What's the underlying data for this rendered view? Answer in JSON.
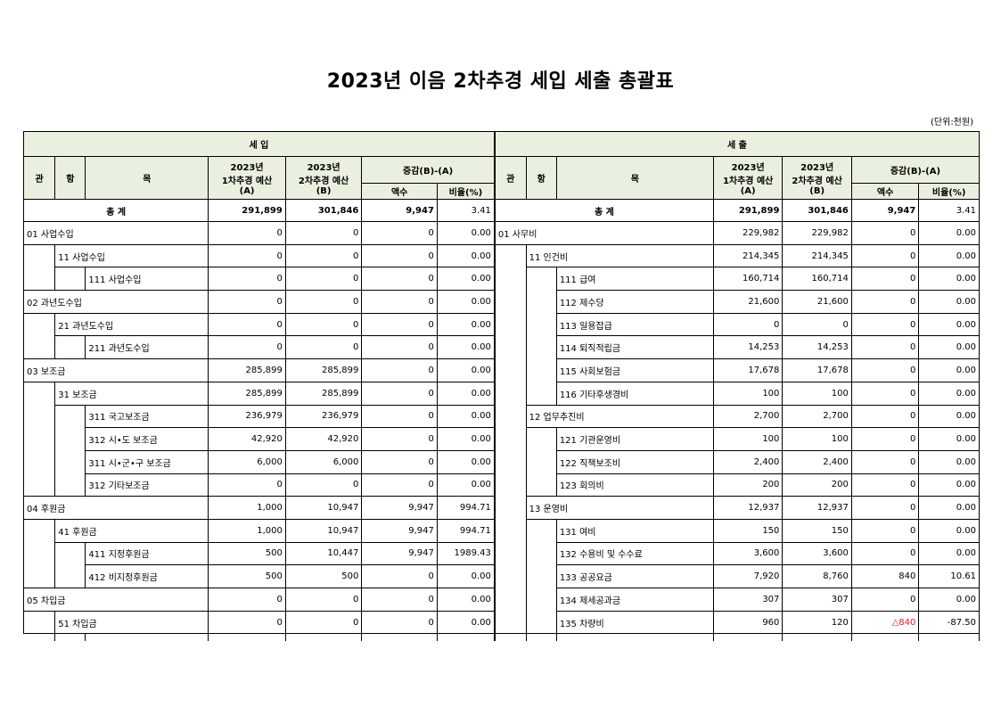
{
  "title": "2023년 이음 2차추경 세입 세출 총괄표",
  "unit": "(단위:천원)",
  "headers": {
    "revenue": "세          입",
    "expense": "세          출",
    "gwan": "관",
    "hang": "항",
    "mok": "목",
    "budget1_line1": "2023년",
    "budget1_line2": "1차추경 예산",
    "budget1_line3": "(A)",
    "budget2_line1": "2023년",
    "budget2_line2": "2차추경 예산",
    "budget2_line3": "(B)",
    "diff": "증감(B)-(A)",
    "amount": "액수",
    "ratio": "비율(%)"
  },
  "totals": {
    "label": "총          계",
    "revenue": {
      "a": "291,899",
      "b": "301,846",
      "diff": "9,947",
      "ratio": "3.41"
    },
    "expense": {
      "a": "291,899",
      "b": "301,846",
      "diff": "9,947",
      "ratio": "3.41"
    }
  },
  "rows": [
    {
      "left": {
        "level": 1,
        "name": "01 사업수입",
        "a": "0",
        "b": "0",
        "diff": "0",
        "ratio": "0.00"
      },
      "right": {
        "level": 1,
        "name": "01 사무비",
        "a": "229,982",
        "b": "229,982",
        "diff": "0",
        "ratio": "0.00"
      }
    },
    {
      "left": {
        "level": 2,
        "name": "11 사업수입",
        "a": "0",
        "b": "0",
        "diff": "0",
        "ratio": "0.00"
      },
      "right": {
        "level": 2,
        "name": "11 인건비",
        "a": "214,345",
        "b": "214,345",
        "diff": "0",
        "ratio": "0.00"
      }
    },
    {
      "left": {
        "level": 3,
        "name": "111 사업수입",
        "a": "0",
        "b": "0",
        "diff": "0",
        "ratio": "0.00"
      },
      "right": {
        "level": 3,
        "name": "111 급여",
        "a": "160,714",
        "b": "160,714",
        "diff": "0",
        "ratio": "0.00"
      }
    },
    {
      "left": {
        "level": 1,
        "name": "02 과년도수입",
        "a": "0",
        "b": "0",
        "diff": "0",
        "ratio": "0.00"
      },
      "right": {
        "level": 3,
        "name": "112 제수당",
        "a": "21,600",
        "b": "21,600",
        "diff": "0",
        "ratio": "0.00"
      }
    },
    {
      "left": {
        "level": 2,
        "name": "21 과년도수입",
        "a": "0",
        "b": "0",
        "diff": "0",
        "ratio": "0.00"
      },
      "right": {
        "level": 3,
        "name": "113 일용잡급",
        "a": "0",
        "b": "0",
        "diff": "0",
        "ratio": "0.00"
      }
    },
    {
      "left": {
        "level": 3,
        "name": "211 과년도수입",
        "a": "0",
        "b": "0",
        "diff": "0",
        "ratio": "0.00"
      },
      "right": {
        "level": 3,
        "name": "114 퇴직적립금",
        "a": "14,253",
        "b": "14,253",
        "diff": "0",
        "ratio": "0.00"
      }
    },
    {
      "left": {
        "level": 1,
        "name": "03 보조금",
        "a": "285,899",
        "b": "285,899",
        "diff": "0",
        "ratio": "0.00"
      },
      "right": {
        "level": 3,
        "name": "115 사회보험금",
        "a": "17,678",
        "b": "17,678",
        "diff": "0",
        "ratio": "0.00"
      }
    },
    {
      "left": {
        "level": 2,
        "name": "31 보조금",
        "a": "285,899",
        "b": "285,899",
        "diff": "0",
        "ratio": "0.00"
      },
      "right": {
        "level": 3,
        "name": "116 기타후생경비",
        "a": "100",
        "b": "100",
        "diff": "0",
        "ratio": "0.00"
      }
    },
    {
      "left": {
        "level": 3,
        "name": "311 국고보조금",
        "a": "236,979",
        "b": "236,979",
        "diff": "0",
        "ratio": "0.00"
      },
      "right": {
        "level": 2,
        "name": "12 업무추진비",
        "a": "2,700",
        "b": "2,700",
        "diff": "0",
        "ratio": "0.00"
      }
    },
    {
      "left": {
        "level": 3,
        "name": "312 시•도 보조금",
        "a": "42,920",
        "b": "42,920",
        "diff": "0",
        "ratio": "0.00"
      },
      "right": {
        "level": 3,
        "name": "121 기관운영비",
        "a": "100",
        "b": "100",
        "diff": "0",
        "ratio": "0.00"
      }
    },
    {
      "left": {
        "level": 3,
        "name": "311 시•군•구 보조금",
        "a": "6,000",
        "b": "6,000",
        "diff": "0",
        "ratio": "0.00"
      },
      "right": {
        "level": 3,
        "name": "122 직책보조비",
        "a": "2,400",
        "b": "2,400",
        "diff": "0",
        "ratio": "0.00"
      }
    },
    {
      "left": {
        "level": 3,
        "name": "312 기타보조금",
        "a": "0",
        "b": "0",
        "diff": "0",
        "ratio": "0.00"
      },
      "right": {
        "level": 3,
        "name": "123 회의비",
        "a": "200",
        "b": "200",
        "diff": "0",
        "ratio": "0.00"
      }
    },
    {
      "left": {
        "level": 1,
        "name": "04 후원금",
        "a": "1,000",
        "b": "10,947",
        "diff": "9,947",
        "ratio": "994.71"
      },
      "right": {
        "level": 2,
        "name": "13 운영비",
        "a": "12,937",
        "b": "12,937",
        "diff": "0",
        "ratio": "0.00"
      }
    },
    {
      "left": {
        "level": 2,
        "name": "41 후원금",
        "a": "1,000",
        "b": "10,947",
        "diff": "9,947",
        "ratio": "994.71"
      },
      "right": {
        "level": 3,
        "name": "131 여비",
        "a": "150",
        "b": "150",
        "diff": "0",
        "ratio": "0.00"
      }
    },
    {
      "left": {
        "level": 3,
        "name": "411 지정후원금",
        "a": "500",
        "b": "10,447",
        "diff": "9,947",
        "ratio": "1989.43"
      },
      "right": {
        "level": 3,
        "name": "132 수용비 및 수수료",
        "a": "3,600",
        "b": "3,600",
        "diff": "0",
        "ratio": "0.00"
      }
    },
    {
      "left": {
        "level": 3,
        "name": "412 비지정후원금",
        "a": "500",
        "b": "500",
        "diff": "0",
        "ratio": "0.00"
      },
      "right": {
        "level": 3,
        "name": "133 공공요금",
        "a": "7,920",
        "b": "8,760",
        "diff": "840",
        "ratio": "10.61"
      }
    },
    {
      "left": {
        "level": 1,
        "name": "05 차입금",
        "a": "0",
        "b": "0",
        "diff": "0",
        "ratio": "0.00"
      },
      "right": {
        "level": 3,
        "name": "134 제세공과금",
        "a": "307",
        "b": "307",
        "diff": "0",
        "ratio": "0.00"
      }
    },
    {
      "left": {
        "level": 2,
        "name": "51 차입금",
        "a": "0",
        "b": "0",
        "diff": "0",
        "ratio": "0.00"
      },
      "right": {
        "level": 3,
        "name": "135 차량비",
        "a": "960",
        "b": "120",
        "diff": "△840",
        "diff_negative": true,
        "ratio": "-87.50"
      }
    }
  ]
}
